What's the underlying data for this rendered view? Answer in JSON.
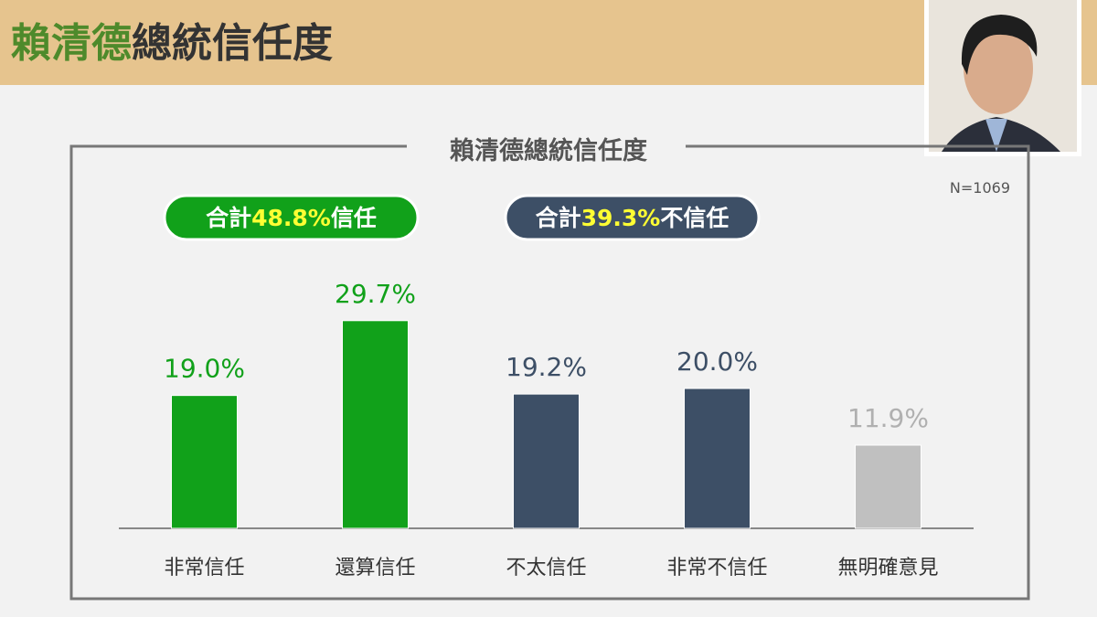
{
  "header": {
    "title_name": "賴清德",
    "title_rest": "總統信任度"
  },
  "chart_data": {
    "type": "bar",
    "title": "賴清德總統信任度",
    "note": "N=1069",
    "categories": [
      "非常信任",
      "還算信任",
      "不太信任",
      "非常不信任",
      "無明確意見"
    ],
    "values": [
      19.0,
      29.7,
      19.2,
      20.0,
      11.9
    ],
    "value_labels": [
      "19.0%",
      "29.7%",
      "19.2%",
      "20.0%",
      "11.9%"
    ],
    "colors": [
      "#11a11a",
      "#11a11a",
      "#3d4f66",
      "#3d4f66",
      "#c0c0c0"
    ],
    "annotations": [
      {
        "prefix": "合計",
        "value": 48.8,
        "label": "48.8%",
        "suffix": "信任",
        "color": "#11a11a"
      },
      {
        "prefix": "合計",
        "value": 39.3,
        "label": "39.3%",
        "suffix": "不信任",
        "color": "#3d4f66"
      }
    ]
  }
}
